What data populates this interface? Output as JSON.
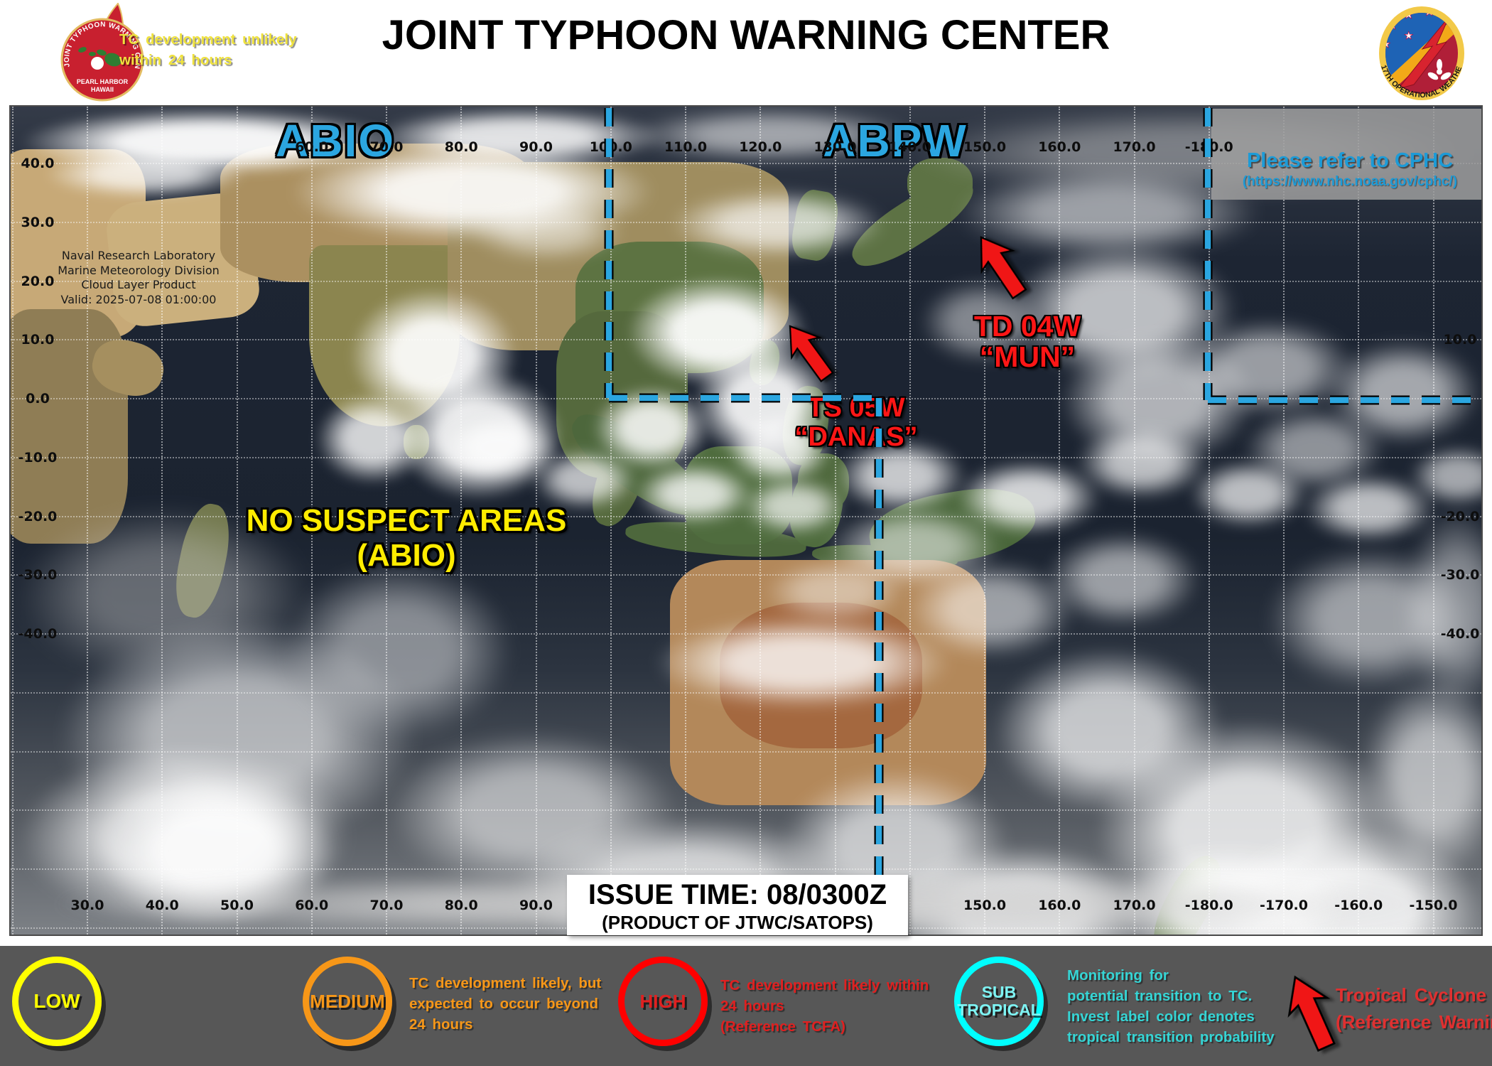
{
  "header": {
    "title": "JOINT TYPHOON WARNING CENTER"
  },
  "logos": {
    "left": {
      "arc_text": "JOINT TYPHOON WARNING CENTER",
      "line1": "PEARL HARBOR",
      "line2": "HAWAII"
    },
    "right": {
      "arc_text": "17TH OPERATIONAL WEATHER SQ"
    }
  },
  "map": {
    "attribution": [
      "Naval Research Laboratory",
      "Marine Meteorology Division",
      "Cloud Layer Product",
      "Valid: 2025-07-08 01:00:00"
    ],
    "region_labels": [
      "ABIO",
      "ABPW"
    ],
    "cphc": {
      "title": "Please refer to CPHC",
      "url": "(https://www.nhc.noaa.gov/cphc/)"
    },
    "storms": [
      {
        "id": "TD 04W",
        "name": "“MUN”"
      },
      {
        "id": "TS 05W",
        "name": "“DANAS”"
      }
    ],
    "no_suspect": {
      "line1": "NO SUSPECT AREAS",
      "line2": "(ABIO)"
    },
    "issue": {
      "line1": "ISSUE TIME: 08/0300Z",
      "line2": "(PRODUCT OF JTWC/SATOPS)"
    }
  },
  "axes": {
    "top_lon": [
      "60.0",
      "70.0",
      "80.0",
      "90.0",
      "100.0",
      "110.0",
      "120.0",
      "130.0",
      "140.0",
      "150.0",
      "160.0",
      "170.0",
      "-180.0"
    ],
    "bottom_lon_left": [
      "30.0",
      "40.0",
      "50.0",
      "60.0",
      "70.0",
      "80.0",
      "90.0"
    ],
    "bottom_lon_right": [
      "150.0",
      "160.0",
      "170.0",
      "-180.0",
      "-170.0",
      "-160.0",
      "-150.0"
    ],
    "lat_left": [
      "40.0",
      "30.0",
      "20.0",
      "10.0",
      "0.0",
      "-10.0",
      "-20.0",
      "-30.0",
      "-40.0"
    ],
    "lat_right": [
      "10.0",
      "-20.0",
      "-30.0",
      "-40.0"
    ]
  },
  "legend": {
    "items": [
      {
        "key": "low",
        "label": "LOW",
        "color": "#ffff00",
        "desc": [
          "TC development  unlikely",
          "within  24 hours"
        ]
      },
      {
        "key": "medium",
        "label": "MEDIUM",
        "color": "#f79718",
        "desc": [
          "TC development  likely,  but",
          "expected  to occur beyond",
          "24 hours"
        ]
      },
      {
        "key": "high",
        "label": "HIGH",
        "color": "#ff0000",
        "desc": [
          "TC development  likely  within",
          "24 hours",
          "(Reference TCFA)"
        ]
      },
      {
        "key": "subtropical",
        "label_line1": "SUB",
        "label_line2": "TROPICAL",
        "color": "#00ffff",
        "desc": [
          "Monitoring  for",
          "potential  transition  to TC.",
          "Invest label  color denotes",
          "tropical  transition  probability"
        ]
      },
      {
        "key": "tropical-cyclone",
        "color": "#e03030",
        "desc": [
          "Tropical Cyclone",
          "(Reference Warning)"
        ]
      }
    ]
  },
  "colors": {
    "region_label": "#2ba6e0",
    "storm_label": "#ff1616",
    "suspect_label": "#ffec00",
    "cphc_note": "#1d9bd7",
    "boundary_line": "#2ba6e0",
    "legend_bg": "#575757",
    "low": "#ffff00",
    "medium": "#f79718",
    "high": "#ff0000",
    "subtropical": "#00ffff"
  }
}
